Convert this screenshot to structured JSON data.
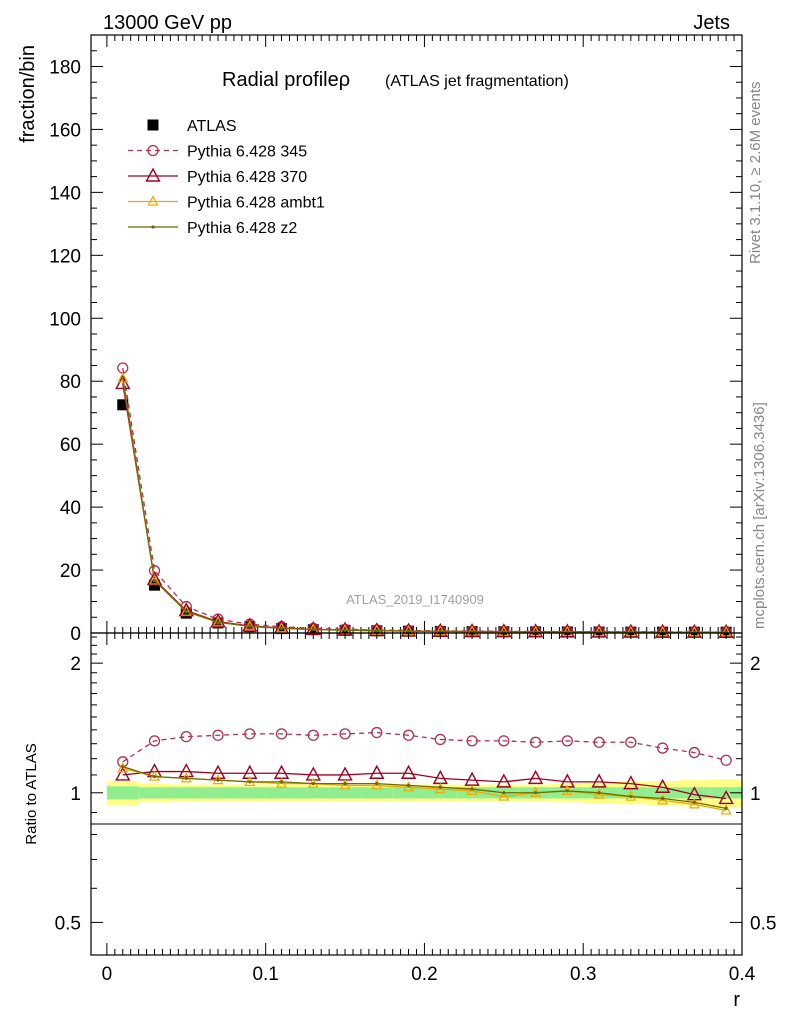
{
  "header": {
    "left": "13000 GeV pp",
    "right": "Jets"
  },
  "side_labels": {
    "rivet": "Rivet 3.1.10, ≥ 2.6M events",
    "mcplots": "mcplots.cern.ch [arXiv:1306.3436]"
  },
  "watermark": "ATLAS_2019_I1740909",
  "colors": {
    "atlas": "#000000",
    "p345": "#b03050",
    "p370": "#a00020",
    "ambt1": "#f0a800",
    "z2": "#6b6b00",
    "band_inner": "#90ee90",
    "band_outer": "#ffff88"
  },
  "chart_data": [
    {
      "type": "line",
      "title": "Radial profileρ",
      "subtitle": "(ATLAS jet fragmentation)",
      "ylabel": "fraction/bin",
      "xlabel": "",
      "xlim": [
        -0.01,
        0.4
      ],
      "ylim": [
        0,
        190
      ],
      "yticks": [
        0,
        20,
        40,
        60,
        80,
        100,
        120,
        140,
        160,
        180
      ],
      "legend_position": "top-left",
      "x": [
        0.01,
        0.03,
        0.05,
        0.07,
        0.09,
        0.11,
        0.13,
        0.15,
        0.17,
        0.19,
        0.21,
        0.23,
        0.25,
        0.27,
        0.29,
        0.31,
        0.33,
        0.35,
        0.37,
        0.39
      ],
      "series": [
        {
          "name": "ATLAS",
          "style": "square",
          "values": [
            72.5,
            15.2,
            6.3,
            3.2,
            2.0,
            1.4,
            1.05,
            0.85,
            0.7,
            0.58,
            0.5,
            0.44,
            0.4,
            0.36,
            0.33,
            0.31,
            0.29,
            0.27,
            0.26,
            0.25
          ]
        },
        {
          "name": "Pythia 6.428 345",
          "style": "circle-dashed",
          "values": [
            84.2,
            19.8,
            8.4,
            4.4,
            2.8,
            2.0,
            1.45,
            1.18,
            0.97,
            0.8,
            0.68,
            0.6,
            0.54,
            0.49,
            0.45,
            0.42,
            0.39,
            0.36,
            0.33,
            0.3
          ]
        },
        {
          "name": "Pythia 6.428 370",
          "style": "triangle-open",
          "values": [
            79.3,
            17.0,
            7.1,
            3.6,
            2.25,
            1.57,
            1.16,
            0.94,
            0.78,
            0.64,
            0.54,
            0.47,
            0.43,
            0.39,
            0.35,
            0.33,
            0.3,
            0.28,
            0.26,
            0.24
          ]
        },
        {
          "name": "Pythia 6.428 ambt1",
          "style": "triangle-small",
          "values": [
            80.9,
            16.7,
            6.8,
            3.4,
            2.1,
            1.47,
            1.1,
            0.89,
            0.73,
            0.6,
            0.52,
            0.45,
            0.39,
            0.36,
            0.33,
            0.3,
            0.28,
            0.26,
            0.24,
            0.23
          ]
        },
        {
          "name": "Pythia 6.428 z2",
          "style": "dot",
          "values": [
            81.2,
            16.7,
            6.8,
            3.4,
            2.1,
            1.48,
            1.11,
            0.89,
            0.73,
            0.6,
            0.52,
            0.45,
            0.4,
            0.36,
            0.33,
            0.31,
            0.28,
            0.26,
            0.24,
            0.23
          ]
        }
      ]
    },
    {
      "type": "line",
      "ylabel": "Ratio to ATLAS",
      "xlabel": "r",
      "xlim": [
        -0.01,
        0.4
      ],
      "ylim": [
        0.42,
        2.35
      ],
      "yscale": "log",
      "yticks": [
        0.5,
        1,
        2
      ],
      "xticks": [
        0,
        0.1,
        0.2,
        0.3,
        0.4
      ],
      "x": [
        0.01,
        0.03,
        0.05,
        0.07,
        0.09,
        0.11,
        0.13,
        0.15,
        0.17,
        0.19,
        0.21,
        0.23,
        0.25,
        0.27,
        0.29,
        0.31,
        0.33,
        0.35,
        0.37,
        0.39
      ],
      "band": {
        "inner": [
          0.035,
          0.03,
          0.03,
          0.03,
          0.03,
          0.03,
          0.03,
          0.03,
          0.03,
          0.03,
          0.03,
          0.03,
          0.03,
          0.03,
          0.03,
          0.03,
          0.03,
          0.03,
          0.03,
          0.03
        ],
        "outer": [
          0.065,
          0.05,
          0.045,
          0.045,
          0.045,
          0.045,
          0.045,
          0.045,
          0.045,
          0.045,
          0.045,
          0.045,
          0.045,
          0.045,
          0.05,
          0.055,
          0.06,
          0.065,
          0.07,
          0.075
        ]
      },
      "series": [
        {
          "name": "Pythia 6.428 345",
          "style": "circle-dashed",
          "values": [
            1.18,
            1.32,
            1.35,
            1.36,
            1.37,
            1.37,
            1.36,
            1.37,
            1.38,
            1.36,
            1.33,
            1.32,
            1.32,
            1.31,
            1.32,
            1.31,
            1.31,
            1.27,
            1.24,
            1.19
          ]
        },
        {
          "name": "Pythia 6.428 370",
          "style": "triangle-open",
          "values": [
            1.1,
            1.12,
            1.12,
            1.11,
            1.11,
            1.11,
            1.1,
            1.1,
            1.11,
            1.11,
            1.08,
            1.07,
            1.06,
            1.08,
            1.06,
            1.06,
            1.05,
            1.03,
            0.99,
            0.97
          ]
        },
        {
          "name": "Pythia 6.428 ambt1",
          "style": "triangle-small",
          "values": [
            1.14,
            1.09,
            1.08,
            1.07,
            1.06,
            1.05,
            1.05,
            1.04,
            1.04,
            1.03,
            1.02,
            1.01,
            0.98,
            1.0,
            1.01,
            0.99,
            0.98,
            0.96,
            0.94,
            0.91
          ]
        },
        {
          "name": "Pythia 6.428 z2",
          "style": "dot",
          "values": [
            1.15,
            1.09,
            1.08,
            1.07,
            1.06,
            1.06,
            1.05,
            1.05,
            1.05,
            1.04,
            1.03,
            1.02,
            1.0,
            1.0,
            1.01,
            1.0,
            0.98,
            0.97,
            0.95,
            0.92
          ]
        }
      ]
    }
  ]
}
